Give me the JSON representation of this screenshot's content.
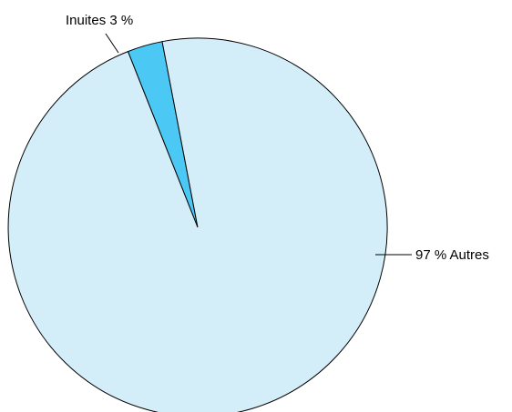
{
  "chart_data": {
    "type": "pie",
    "slices": [
      {
        "label": "Inuites",
        "value": 3,
        "color": "#4cc8f4"
      },
      {
        "label": "Autres",
        "value": 97,
        "color": "#d4eef9"
      }
    ],
    "labels": {
      "inuites": "Inuites 3 %",
      "autres": "97 % Autres"
    },
    "start_angle_degrees_clockwise_from_top": -21.6,
    "direction": "clockwise",
    "edge_color": "#000000"
  }
}
